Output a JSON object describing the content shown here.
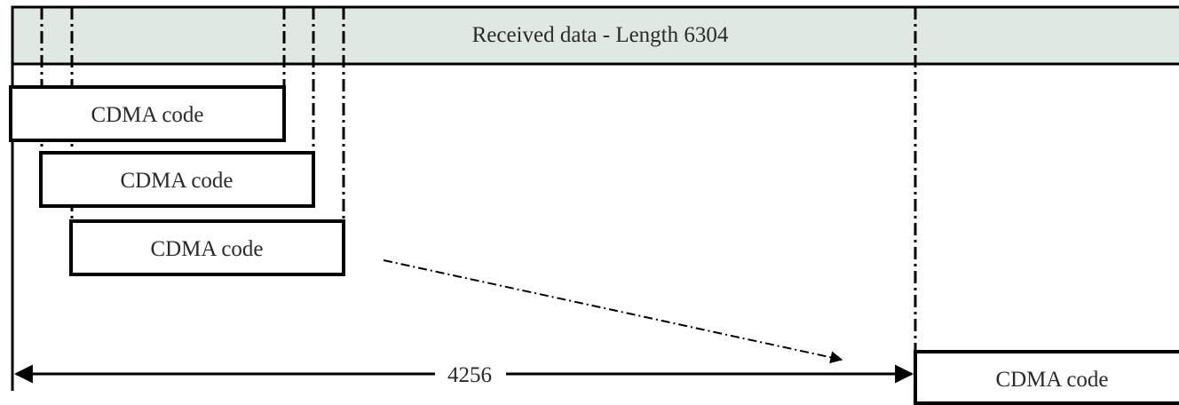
{
  "received_bar": {
    "label": "Received data - Length 6304",
    "fill_color": "#dfe8e3"
  },
  "code_blocks": [
    {
      "label": "CDMA code"
    },
    {
      "label": "CDMA code"
    },
    {
      "label": "CDMA code"
    },
    {
      "label": "CDMA code"
    }
  ],
  "dimension": {
    "label": "4256"
  }
}
